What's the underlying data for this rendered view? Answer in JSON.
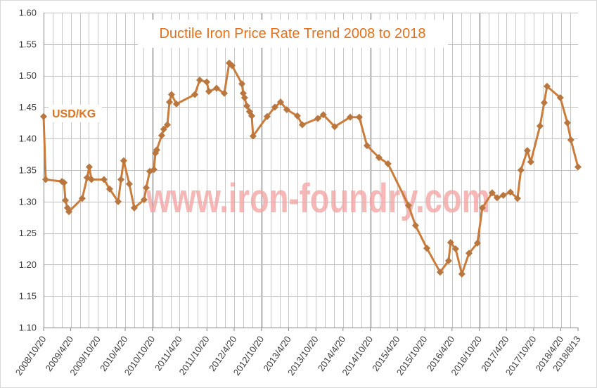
{
  "chart_data": {
    "type": "line",
    "title": "Ductile Iron Price Rate Trend 2008 to 2018",
    "ylabel": "USD/KG",
    "ylim": [
      1.1,
      1.6
    ],
    "xlim": [
      "2008/10/20",
      "2018/8/13"
    ],
    "grid": true,
    "marker": "diamond",
    "yticks": [
      "1.60",
      "1.55",
      "1.50",
      "1.45",
      "1.40",
      "1.35",
      "1.30",
      "1.25",
      "1.20",
      "1.15",
      "1.10"
    ],
    "xticks": [
      "2008/10/20",
      "2009/4/20",
      "2009/10/20",
      "2010/4/20",
      "2010/10/20",
      "2011/4/20",
      "2011/10/20",
      "2012/4/20",
      "2012/10/20",
      "2013/4/20",
      "2013/10/20",
      "2014/4/20",
      "2014/10/20",
      "2015/4/20",
      "2015/10/20",
      "2016/4/20",
      "2016/10/20",
      "2017/4/20",
      "2017/10/20",
      "2018/4/20",
      "2018/8/13"
    ],
    "x": [
      "2008/10/20",
      "2008/11/3",
      "2009/2/20",
      "2009/3/6",
      "2009/3/15",
      "2009/3/29",
      "2009/4/8",
      "2009/7/6",
      "2009/8/8",
      "2009/8/22",
      "2009/9/6",
      "2009/11/29",
      "2010/1/6",
      "2010/3/4",
      "2010/3/23",
      "2010/4/10",
      "2010/5/18",
      "2010/6/20",
      "2010/8/25",
      "2010/9/8",
      "2010/10/2",
      "2010/10/30",
      "2010/11/9",
      "2010/11/18",
      "2010/12/21",
      "2011/1/4",
      "2011/1/28",
      "2011/2/11",
      "2011/2/25",
      "2011/3/30",
      "2011/7/31",
      "2011/9/2",
      "2011/10/19",
      "2011/11/2",
      "2011/12/24",
      "2012/2/14",
      "2012/3/18",
      "2012/4/6",
      "2012/6/11",
      "2012/6/20",
      "2012/6/29",
      "2012/7/14",
      "2012/8/1",
      "2012/8/16",
      "2012/8/25",
      "2012/11/27",
      "2013/1/18",
      "2013/2/25",
      "2013/4/8",
      "2013/6/18",
      "2013/7/21",
      "2013/11/2",
      "2013/12/9",
      "2014/2/23",
      "2014/6/7",
      "2014/8/7",
      "2014/9/28",
      "2014/12/17",
      "2015/2/16",
      "2015/7/3",
      "2015/8/19",
      "2015/11/3",
      "2016/1/31",
      "2016/3/28",
      "2016/4/11",
      "2016/5/14",
      "2016/6/25",
      "2016/8/12",
      "2016/10/7",
      "2016/11/9",
      "2017/1/14",
      "2017/2/16",
      "2017/3/30",
      "2017/5/17",
      "2017/7/3",
      "2017/7/26",
      "2017/9/7",
      "2017/9/30",
      "2017/12/1",
      "2017/12/29",
      "2018/1/17",
      "2018/4/16",
      "2018/6/3",
      "2018/6/26",
      "2018/8/13"
    ],
    "series": [
      {
        "values": [
          1.435,
          1.335,
          1.332,
          1.33,
          1.302,
          1.29,
          1.284,
          1.305,
          1.338,
          1.355,
          1.335,
          1.335,
          1.32,
          1.3,
          1.335,
          1.365,
          1.328,
          1.29,
          1.303,
          1.322,
          1.348,
          1.351,
          1.377,
          1.382,
          1.405,
          1.415,
          1.422,
          1.458,
          1.47,
          1.455,
          1.47,
          1.493,
          1.49,
          1.475,
          1.48,
          1.472,
          1.52,
          1.516,
          1.487,
          1.472,
          1.465,
          1.452,
          1.443,
          1.436,
          1.404,
          1.435,
          1.45,
          1.458,
          1.446,
          1.436,
          1.422,
          1.432,
          1.438,
          1.419,
          1.434,
          1.434,
          1.389,
          1.37,
          1.36,
          1.294,
          1.262,
          1.226,
          1.188,
          1.206,
          1.235,
          1.225,
          1.185,
          1.218,
          1.234,
          1.29,
          1.314,
          1.306,
          1.31,
          1.315,
          1.305,
          1.35,
          1.381,
          1.363,
          1.42,
          1.457,
          1.483,
          1.465,
          1.425,
          1.398,
          1.355
        ]
      }
    ]
  },
  "watermark": "www.iron-foundry.com",
  "colors": {
    "line": "#CC7C3A",
    "marker": "#B9763E",
    "title": "#E2701C",
    "unit_label": "#E2701C",
    "watermark": "#F3A0A0"
  }
}
